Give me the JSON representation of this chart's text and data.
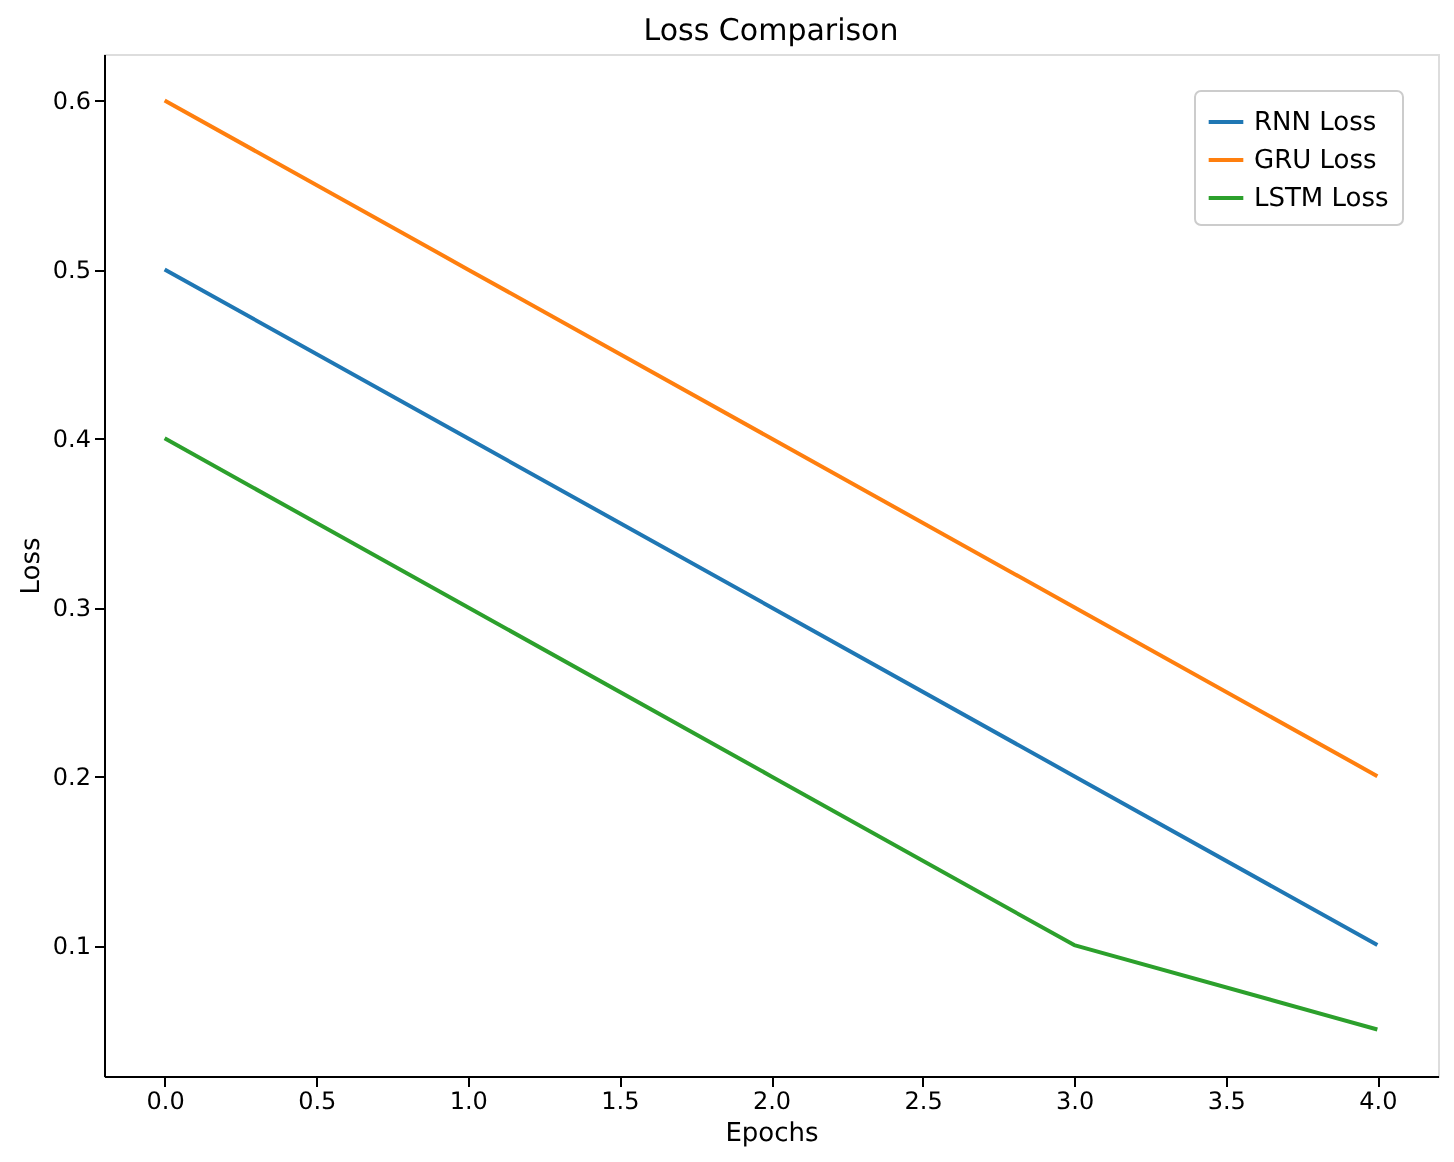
{
  "chart_data": {
    "type": "line",
    "title": "Loss Comparison",
    "xlabel": "Epochs",
    "ylabel": "Loss",
    "x": [
      0,
      1,
      2,
      3,
      4
    ],
    "series": [
      {
        "name": "RNN Loss",
        "color": "#1f77b4",
        "values": [
          0.5,
          0.4,
          0.3,
          0.2,
          0.1
        ]
      },
      {
        "name": "GRU Loss",
        "color": "#ff7f0e",
        "values": [
          0.6,
          0.5,
          0.4,
          0.3,
          0.2
        ]
      },
      {
        "name": "LSTM Loss",
        "color": "#2ca02c",
        "values": [
          0.4,
          0.3,
          0.2,
          0.1,
          0.05
        ]
      }
    ],
    "xlim": [
      -0.2,
      4.2
    ],
    "xticks": [
      {
        "value": 0,
        "label": "0.0"
      },
      {
        "value": 0.5,
        "label": "0.5"
      },
      {
        "value": 1,
        "label": "1.0"
      },
      {
        "value": 1.5,
        "label": "1.5"
      },
      {
        "value": 2,
        "label": "2.0"
      },
      {
        "value": 2.5,
        "label": "2.5"
      },
      {
        "value": 3,
        "label": "3.0"
      },
      {
        "value": 3.5,
        "label": "3.5"
      },
      {
        "value": 4,
        "label": "4.0"
      }
    ],
    "ylim": [
      0.0225,
      0.6275
    ],
    "yticks": [
      0.1,
      0.2,
      0.3,
      0.4,
      0.5,
      0.6
    ],
    "grid": false,
    "legend": "top right",
    "marker": "none",
    "line_style": "solid"
  }
}
